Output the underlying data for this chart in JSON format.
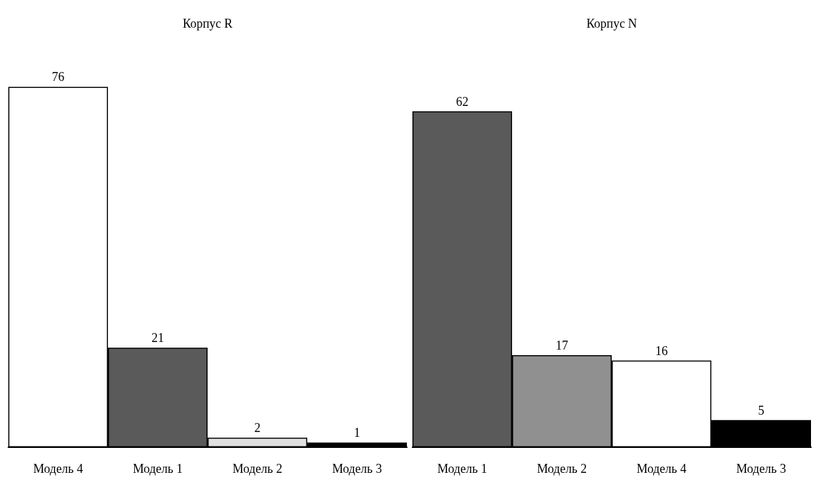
{
  "chart_data": [
    {
      "type": "bar",
      "title": "Корпус R",
      "categories": [
        "Модель 4",
        "Модель 1",
        "Модель 2",
        "Модель 3"
      ],
      "values": [
        76,
        21,
        2,
        1
      ],
      "colors": [
        "#ffffff",
        "#5a5a5a",
        "#e0e0e0",
        "#000000"
      ],
      "data_labels": true
    },
    {
      "type": "bar",
      "title": "Корпус N",
      "categories": [
        "Модель 1",
        "Модель 2",
        "Модель 4",
        "Модель 3"
      ],
      "values": [
        62,
        17,
        16,
        5
      ],
      "colors": [
        "#5a5a5a",
        "#909090",
        "#ffffff",
        "#000000"
      ],
      "data_labels": true
    }
  ]
}
